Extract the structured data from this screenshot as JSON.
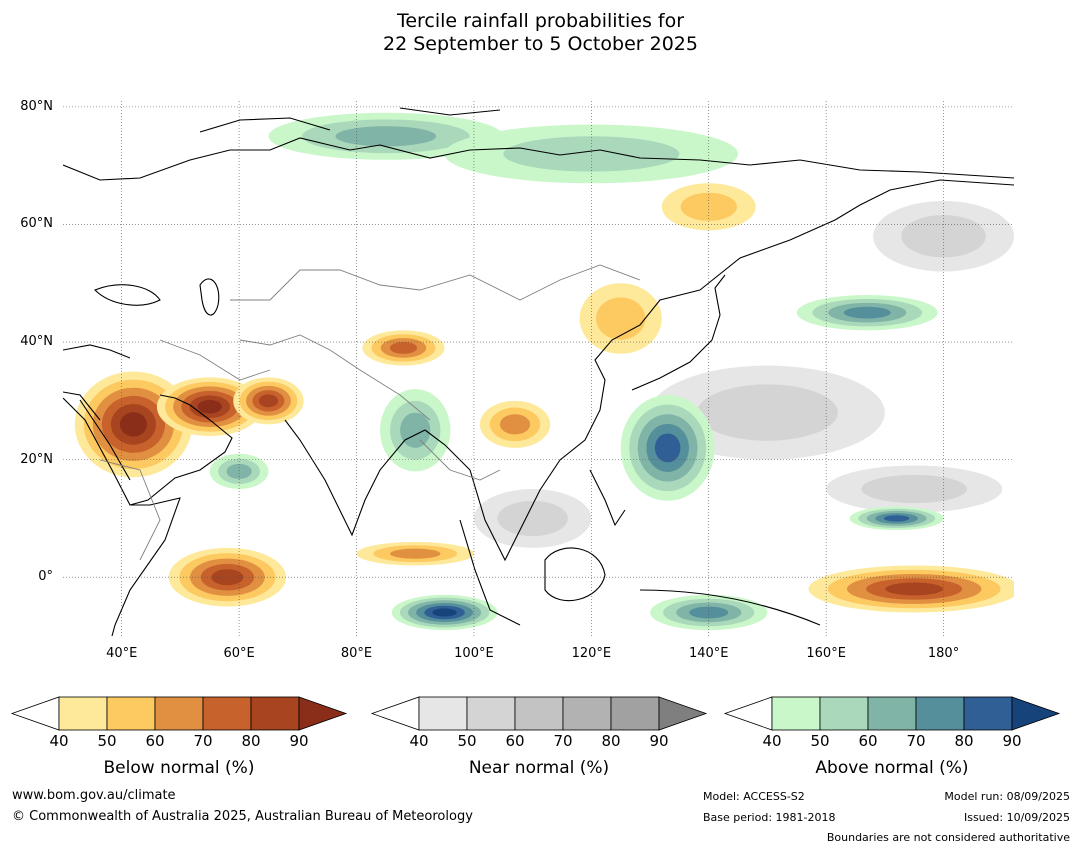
{
  "title": {
    "line1": "Tercile rainfall probabilities for",
    "line2": "22 September to 5 October 2025"
  },
  "map": {
    "lon_range": [
      30,
      192
    ],
    "lat_range": [
      -10,
      81
    ],
    "lat_ticks": [
      {
        "value": 80,
        "label": "80°N"
      },
      {
        "value": 60,
        "label": "60°N"
      },
      {
        "value": 40,
        "label": "40°N"
      },
      {
        "value": 20,
        "label": "20°N"
      },
      {
        "value": 0,
        "label": "0°"
      }
    ],
    "lon_ticks": [
      {
        "value": 40,
        "label": "40°E"
      },
      {
        "value": 60,
        "label": "60°E"
      },
      {
        "value": 80,
        "label": "80°E"
      },
      {
        "value": 100,
        "label": "100°E"
      },
      {
        "value": 120,
        "label": "120°E"
      },
      {
        "value": 140,
        "label": "140°E"
      },
      {
        "value": 160,
        "label": "160°E"
      },
      {
        "value": 180,
        "label": "180°"
      }
    ],
    "regions": [
      {
        "category": "below",
        "level": 90,
        "lon": 42,
        "lat": 26,
        "rlon": 10,
        "rlat": 9
      },
      {
        "category": "below",
        "level": 90,
        "lon": 55,
        "lat": 29,
        "rlon": 9,
        "rlat": 5
      },
      {
        "category": "below",
        "level": 80,
        "lon": 65,
        "lat": 30,
        "rlon": 6,
        "rlat": 4
      },
      {
        "category": "below",
        "level": 70,
        "lon": 88,
        "lat": 39,
        "rlon": 7,
        "rlat": 3
      },
      {
        "category": "below",
        "level": 80,
        "lon": 58,
        "lat": 0,
        "rlon": 10,
        "rlat": 5
      },
      {
        "category": "below",
        "level": 60,
        "lon": 90,
        "lat": 4,
        "rlon": 10,
        "rlat": 2
      },
      {
        "category": "below",
        "level": 60,
        "lon": 107,
        "lat": 26,
        "rlon": 6,
        "rlat": 4
      },
      {
        "category": "below",
        "level": 50,
        "lon": 125,
        "lat": 44,
        "rlon": 7,
        "rlat": 6
      },
      {
        "category": "below",
        "level": 50,
        "lon": 140,
        "lat": 63,
        "rlon": 8,
        "rlat": 4
      },
      {
        "category": "below",
        "level": 80,
        "lon": 175,
        "lat": -2,
        "rlon": 18,
        "rlat": 4
      },
      {
        "category": "near",
        "level": 50,
        "lon": 150,
        "lat": 28,
        "rlon": 20,
        "rlat": 8
      },
      {
        "category": "near",
        "level": 50,
        "lon": 175,
        "lat": 15,
        "rlon": 15,
        "rlat": 4
      },
      {
        "category": "near",
        "level": 50,
        "lon": 180,
        "lat": 58,
        "rlon": 12,
        "rlat": 6
      },
      {
        "category": "near",
        "level": 50,
        "lon": 110,
        "lat": 10,
        "rlon": 10,
        "rlat": 5
      },
      {
        "category": "above",
        "level": 60,
        "lon": 85,
        "lat": 75,
        "rlon": 20,
        "rlat": 4
      },
      {
        "category": "above",
        "level": 50,
        "lon": 120,
        "lat": 72,
        "rlon": 25,
        "rlat": 5
      },
      {
        "category": "above",
        "level": 80,
        "lon": 133,
        "lat": 22,
        "rlon": 8,
        "rlat": 9
      },
      {
        "category": "above",
        "level": 90,
        "lon": 95,
        "lat": -6,
        "rlon": 9,
        "rlat": 3
      },
      {
        "category": "above",
        "level": 70,
        "lon": 167,
        "lat": 45,
        "rlon": 12,
        "rlat": 3
      },
      {
        "category": "above",
        "level": 80,
        "lon": 172,
        "lat": 10,
        "rlon": 8,
        "rlat": 2
      },
      {
        "category": "above",
        "level": 70,
        "lon": 140,
        "lat": -6,
        "rlon": 10,
        "rlat": 3
      },
      {
        "category": "above",
        "level": 60,
        "lon": 90,
        "lat": 25,
        "rlon": 6,
        "rlat": 7
      },
      {
        "category": "above",
        "level": 60,
        "lon": 60,
        "lat": 18,
        "rlon": 5,
        "rlat": 3
      }
    ]
  },
  "colorbars": [
    {
      "id": "below",
      "ticks": [
        "40",
        "50",
        "60",
        "70",
        "80",
        "90"
      ],
      "colors": [
        "#fee99b",
        "#fdc961",
        "#e09040",
        "#c8622d",
        "#a8441f"
      ],
      "over_color": "#8a2e1a",
      "label": "Below normal (%)"
    },
    {
      "id": "near",
      "ticks": [
        "40",
        "50",
        "60",
        "70",
        "80",
        "90"
      ],
      "colors": [
        "#e6e6e6",
        "#d4d4d4",
        "#c3c3c3",
        "#b2b2b2",
        "#a1a1a1"
      ],
      "over_color": "#7f7f7f",
      "label": "Near normal (%)"
    },
    {
      "id": "above",
      "ticks": [
        "40",
        "50",
        "60",
        "70",
        "80",
        "90"
      ],
      "colors": [
        "#c9f7c9",
        "#a9d8bb",
        "#7fb4a7",
        "#568f9c",
        "#2f5f95"
      ],
      "over_color": "#16437a",
      "label": "Above normal (%)"
    }
  ],
  "footer": {
    "url": "www.bom.gov.au/climate",
    "copyright": "© Commonwealth of Australia 2025, Australian Bureau of Meteorology",
    "model": "Model: ACCESS-S2",
    "base_period": "Base period: 1981-2018",
    "model_run": "Model run: 08/09/2025",
    "issued": "Issued: 10/09/2025",
    "disclaimer": "Boundaries are not considered authoritative"
  }
}
